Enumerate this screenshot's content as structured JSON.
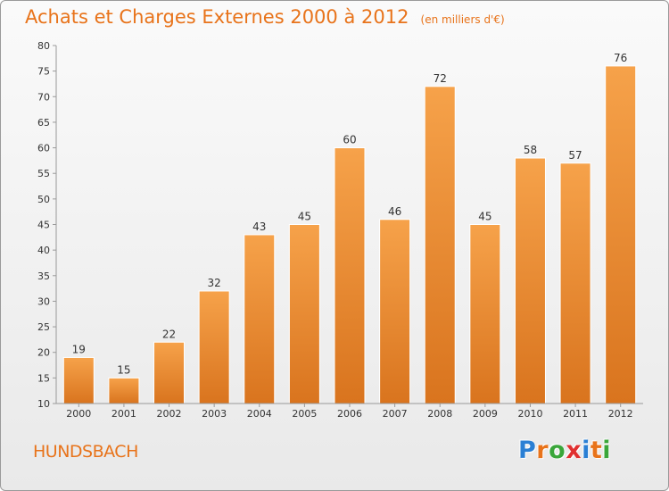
{
  "header": {
    "title": "Achats et Charges Externes 2000 à 2012",
    "unit": "(en milliers d'€)"
  },
  "footer": {
    "commune": "HUNDSBACH",
    "logo_letters": [
      {
        "char": "P",
        "color": "#2a7fd4"
      },
      {
        "char": "r",
        "color": "#e8731a"
      },
      {
        "char": "o",
        "color": "#3aa63a"
      },
      {
        "char": "x",
        "color": "#e03030"
      },
      {
        "char": "i",
        "color": "#2a7fd4"
      },
      {
        "char": "t",
        "color": "#e8731a"
      },
      {
        "char": "i",
        "color": "#3aa63a"
      }
    ]
  },
  "colors": {
    "bar_light": "#f6a24a",
    "bar_dark": "#d9741e",
    "accent": "#e8731a"
  },
  "chart_data": {
    "type": "bar",
    "title": "Achats et Charges Externes 2000 à 2012",
    "subtitle": "(en milliers d'€)",
    "categories": [
      "2000",
      "2001",
      "2002",
      "2003",
      "2004",
      "2005",
      "2006",
      "2007",
      "2008",
      "2009",
      "2010",
      "2011",
      "2012"
    ],
    "values": [
      19,
      15,
      22,
      32,
      43,
      45,
      60,
      46,
      72,
      45,
      58,
      57,
      76
    ],
    "ylim": [
      10,
      80
    ],
    "yticks": [
      10,
      15,
      20,
      25,
      30,
      35,
      40,
      45,
      50,
      55,
      60,
      65,
      70,
      75,
      80
    ],
    "xlabel": "",
    "ylabel": "",
    "grid": false,
    "legend": "none"
  }
}
